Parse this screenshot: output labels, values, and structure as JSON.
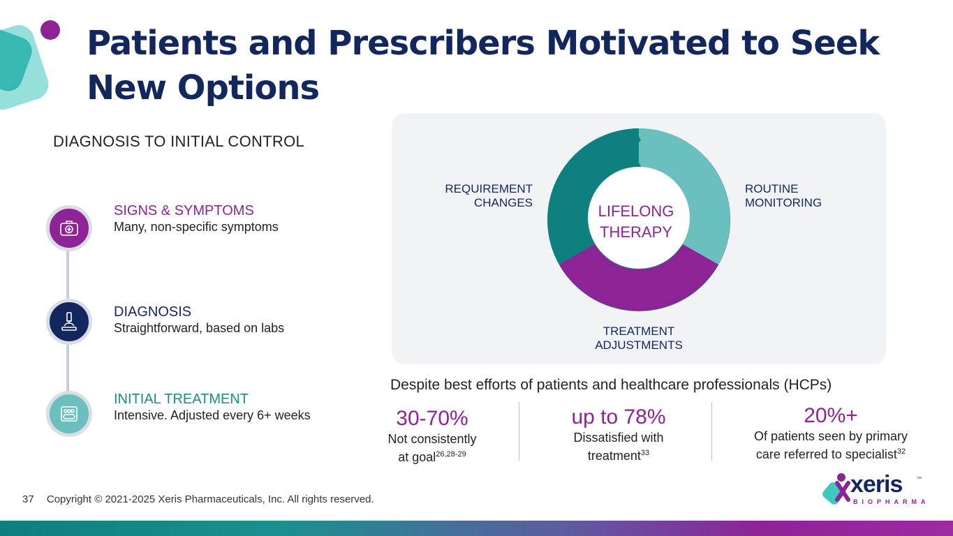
{
  "title": {
    "line1": "Patients and Prescribers Motivated to Seek",
    "line2": "New Options"
  },
  "subtitle": "DIAGNOSIS TO INITIAL CONTROL",
  "steps": [
    {
      "heading": "SIGNS & SYMPTOMS",
      "description": "Many, non-specific symptoms",
      "icon": "first-aid-kit-icon",
      "color": "#8e2396"
    },
    {
      "heading": "DIAGNOSIS",
      "description": "Straightforward, based on labs",
      "icon": "microscope-icon",
      "color": "#13275f"
    },
    {
      "heading": "INITIAL TREATMENT",
      "description": "Intensive. Adjusted every 6+ weeks",
      "icon": "pill-pack-icon",
      "color": "#1b8a8a"
    }
  ],
  "cycle": {
    "center_line1": "LIFELONG",
    "center_line2": "THERAPY",
    "requirement_line1": "REQUIREMENT",
    "requirement_line2": "CHANGES",
    "routine_line1": "ROUTINE",
    "routine_line2": "MONITORING",
    "treatment_line1": "TREATMENT",
    "treatment_line2": "ADJUSTMENTS"
  },
  "despite_text": "Despite best efforts of patients and healthcare professionals (HCPs)",
  "stats": [
    {
      "value": "30-70%",
      "line1": "Not consistently",
      "line2": "at goal",
      "sup": "26,28-29"
    },
    {
      "value": "up to 78%",
      "line1": "Dissatisfied with",
      "line2": "treatment",
      "sup": "33"
    },
    {
      "value": "20%+",
      "line1": "Of patients seen by primary",
      "line2": "care referred to specialist",
      "sup": "32"
    }
  ],
  "footer": {
    "page_number": "37",
    "copyright": "Copyright © 2021-2025 Xeris Pharmaceuticals, Inc. All rights reserved."
  },
  "logo": {
    "word": "xeris",
    "sub": "BIOPHARMA",
    "tm": "™"
  },
  "colors": {
    "navy": "#13275f",
    "purple": "#8e2396",
    "teal_dark": "#0f8080",
    "teal_light": "#6cbfbf"
  }
}
